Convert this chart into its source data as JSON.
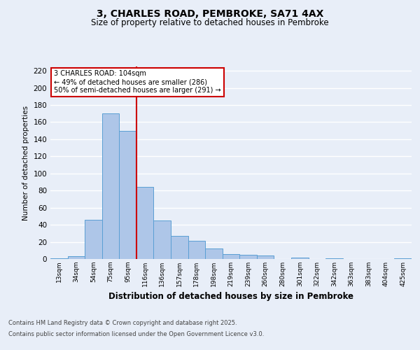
{
  "title": "3, CHARLES ROAD, PEMBROKE, SA71 4AX",
  "subtitle": "Size of property relative to detached houses in Pembroke",
  "xlabel": "Distribution of detached houses by size in Pembroke",
  "ylabel": "Number of detached properties",
  "bar_labels": [
    "13sqm",
    "34sqm",
    "54sqm",
    "75sqm",
    "95sqm",
    "116sqm",
    "136sqm",
    "157sqm",
    "178sqm",
    "198sqm",
    "219sqm",
    "239sqm",
    "260sqm",
    "280sqm",
    "301sqm",
    "322sqm",
    "342sqm",
    "363sqm",
    "383sqm",
    "404sqm",
    "425sqm"
  ],
  "bar_values": [
    1,
    3,
    46,
    170,
    150,
    84,
    45,
    27,
    21,
    12,
    6,
    5,
    4,
    0,
    2,
    0,
    1,
    0,
    0,
    0,
    1
  ],
  "bar_color": "#aec6e8",
  "bar_edge_color": "#5a9fd4",
  "background_color": "#e8eef8",
  "grid_color": "#ffffff",
  "annotation_text": "3 CHARLES ROAD: 104sqm\n← 49% of detached houses are smaller (286)\n50% of semi-detached houses are larger (291) →",
  "annotation_box_color": "#ffffff",
  "annotation_box_edge_color": "#cc0000",
  "vline_color": "#cc0000",
  "ylim": [
    0,
    225
  ],
  "yticks": [
    0,
    20,
    40,
    60,
    80,
    100,
    120,
    140,
    160,
    180,
    200,
    220
  ],
  "footer_line1": "Contains HM Land Registry data © Crown copyright and database right 2025.",
  "footer_line2": "Contains public sector information licensed under the Open Government Licence v3.0."
}
